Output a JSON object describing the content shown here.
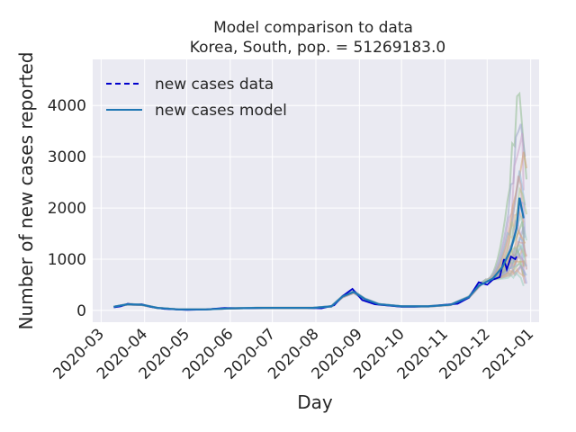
{
  "chart_data": {
    "type": "line",
    "title": "Model comparison to data",
    "subtitle": "Korea, South, pop. = 51269183.0",
    "xlabel": "Day",
    "ylabel": "Number of new cases reported",
    "x_ticks": [
      "2020-03",
      "2020-04",
      "2020-05",
      "2020-06",
      "2020-07",
      "2020-08",
      "2020-09",
      "2020-10",
      "2020-11",
      "2020-12",
      "2021-01"
    ],
    "y_ticks": [
      0,
      1000,
      2000,
      3000,
      4000
    ],
    "xlim": [
      "2020-02-24",
      "2021-01-07"
    ],
    "ylim": [
      -230,
      4900
    ],
    "grid": true,
    "legend_position": "top-left",
    "legend": [
      {
        "label": "new cases data",
        "style": "dashed",
        "color": "#0000cc"
      },
      {
        "label": "new cases model",
        "style": "solid",
        "color": "#1f77b4"
      }
    ],
    "series": [
      {
        "name": "new cases data",
        "color": "#0000cc",
        "points": [
          [
            "2020-03-10",
            60
          ],
          [
            "2020-03-15",
            80
          ],
          [
            "2020-03-20",
            130
          ],
          [
            "2020-03-25",
            110
          ],
          [
            "2020-03-30",
            120
          ],
          [
            "2020-04-05",
            70
          ],
          [
            "2020-04-15",
            30
          ],
          [
            "2020-05-01",
            10
          ],
          [
            "2020-05-15",
            20
          ],
          [
            "2020-05-28",
            50
          ],
          [
            "2020-06-10",
            40
          ],
          [
            "2020-06-25",
            50
          ],
          [
            "2020-07-10",
            50
          ],
          [
            "2020-07-25",
            50
          ],
          [
            "2020-08-05",
            40
          ],
          [
            "2020-08-14",
            100
          ],
          [
            "2020-08-20",
            280
          ],
          [
            "2020-08-27",
            420
          ],
          [
            "2020-09-03",
            200
          ],
          [
            "2020-09-12",
            120
          ],
          [
            "2020-09-20",
            100
          ],
          [
            "2020-10-01",
            70
          ],
          [
            "2020-10-10",
            70
          ],
          [
            "2020-10-20",
            80
          ],
          [
            "2020-11-01",
            110
          ],
          [
            "2020-11-10",
            130
          ],
          [
            "2020-11-18",
            250
          ],
          [
            "2020-11-25",
            550
          ],
          [
            "2020-12-01",
            500
          ],
          [
            "2020-12-05",
            600
          ],
          [
            "2020-12-10",
            650
          ],
          [
            "2020-12-13",
            1000
          ],
          [
            "2020-12-15",
            800
          ],
          [
            "2020-12-18",
            1050
          ],
          [
            "2020-12-21",
            1000
          ],
          [
            "2020-12-22",
            1050
          ]
        ]
      },
      {
        "name": "new cases model",
        "color": "#1f77b4",
        "points": [
          [
            "2020-03-10",
            70
          ],
          [
            "2020-03-20",
            120
          ],
          [
            "2020-03-30",
            110
          ],
          [
            "2020-04-10",
            50
          ],
          [
            "2020-04-25",
            20
          ],
          [
            "2020-05-15",
            20
          ],
          [
            "2020-06-01",
            40
          ],
          [
            "2020-06-20",
            50
          ],
          [
            "2020-07-10",
            50
          ],
          [
            "2020-07-30",
            50
          ],
          [
            "2020-08-12",
            80
          ],
          [
            "2020-08-20",
            270
          ],
          [
            "2020-08-28",
            360
          ],
          [
            "2020-09-05",
            220
          ],
          [
            "2020-09-15",
            120
          ],
          [
            "2020-10-01",
            80
          ],
          [
            "2020-10-20",
            80
          ],
          [
            "2020-11-05",
            110
          ],
          [
            "2020-11-18",
            260
          ],
          [
            "2020-11-25",
            480
          ],
          [
            "2020-12-05",
            620
          ],
          [
            "2020-12-12",
            850
          ],
          [
            "2020-12-18",
            1200
          ],
          [
            "2020-12-22",
            1600
          ],
          [
            "2020-12-24",
            2200
          ],
          [
            "2020-12-27",
            1800
          ]
        ]
      }
    ],
    "ensemble_endpoints": [
      4650,
      4000,
      3800,
      3400,
      3000,
      2700,
      2500,
      2300,
      2100,
      2000,
      1900,
      1800,
      1700,
      1600,
      1500,
      1450,
      1400,
      1350,
      1300,
      1250,
      1200,
      1150,
      1100,
      1050,
      1000,
      950,
      900,
      850,
      800,
      700
    ]
  }
}
